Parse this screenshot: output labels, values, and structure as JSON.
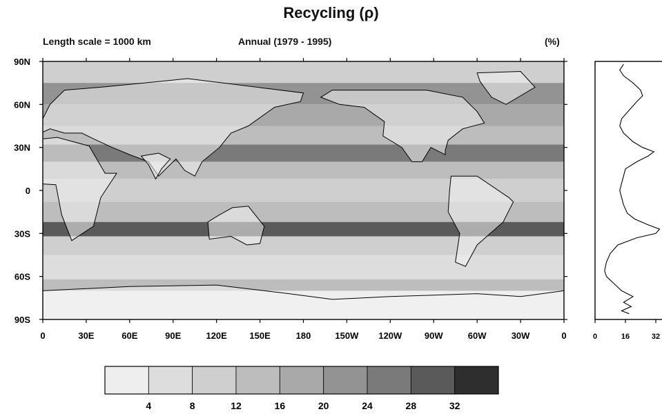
{
  "title": "Recycling (ρ)",
  "subtitle_left": "Length scale = 1000 km",
  "subtitle_center": "Annual (1979 - 1995)",
  "units_label": "(%)",
  "colors": {
    "shade_low": "#eeeeee",
    "shade_high": "#1e1e1e",
    "axis": "#000000",
    "coast": "#000000",
    "profile_line": "#000000"
  },
  "chart_data": [
    {
      "type": "heatmap",
      "description_panel": "map",
      "x_ticks": [
        "0",
        "30E",
        "60E",
        "90E",
        "120E",
        "150E",
        "180",
        "150W",
        "120W",
        "90W",
        "60W",
        "30W",
        "0"
      ],
      "x_tick_values": [
        0,
        30,
        60,
        90,
        120,
        150,
        180,
        210,
        240,
        270,
        300,
        330,
        360
      ],
      "y_ticks": [
        "90N",
        "60N",
        "30N",
        "0",
        "30S",
        "60S",
        "90S"
      ],
      "y_tick_values": [
        90,
        60,
        30,
        0,
        -30,
        -60,
        -90
      ],
      "xlim": [
        0,
        360
      ],
      "ylim": [
        -90,
        90
      ],
      "latitude_bands": [
        {
          "lat_range": [
            75,
            90
          ],
          "value": 9
        },
        {
          "lat_range": [
            60,
            75
          ],
          "value": 22
        },
        {
          "lat_range": [
            45,
            60
          ],
          "value": 18
        },
        {
          "lat_range": [
            32,
            45
          ],
          "value": 12
        },
        {
          "lat_range": [
            20,
            32
          ],
          "value": 26
        },
        {
          "lat_range": [
            8,
            20
          ],
          "value": 14
        },
        {
          "lat_range": [
            -8,
            8
          ],
          "value": 11
        },
        {
          "lat_range": [
            -22,
            -8
          ],
          "value": 15
        },
        {
          "lat_range": [
            -32,
            -22
          ],
          "value": 30
        },
        {
          "lat_range": [
            -45,
            -32
          ],
          "value": 8
        },
        {
          "lat_range": [
            -62,
            -45
          ],
          "value": 5
        },
        {
          "lat_range": [
            -70,
            -62
          ],
          "value": 14
        },
        {
          "lat_range": [
            -90,
            -70
          ],
          "value": 2
        }
      ],
      "colorbar": {
        "boundaries": [
          0,
          4,
          8,
          12,
          16,
          20,
          24,
          28,
          32,
          36
        ],
        "tick_labels": [
          "4",
          "8",
          "12",
          "16",
          "20",
          "24",
          "28",
          "32"
        ],
        "shades": [
          "#eeeeee",
          "#dddddd",
          "#cfcfcf",
          "#bdbdbd",
          "#a9a9a9",
          "#939393",
          "#7a7a7a",
          "#5a5a5a",
          "#2e2e2e"
        ]
      }
    },
    {
      "type": "line",
      "description_panel": "zonal_mean_profile",
      "x_ticks": [
        "0",
        "16",
        "32"
      ],
      "x_tick_values": [
        0,
        16,
        32
      ],
      "xlim": [
        0,
        40
      ],
      "ylim": [
        -90,
        90
      ],
      "points": [
        {
          "lat": 88,
          "value": 15
        },
        {
          "lat": 84,
          "value": 13
        },
        {
          "lat": 80,
          "value": 15
        },
        {
          "lat": 75,
          "value": 20
        },
        {
          "lat": 70,
          "value": 24
        },
        {
          "lat": 66,
          "value": 25
        },
        {
          "lat": 62,
          "value": 22
        },
        {
          "lat": 56,
          "value": 18
        },
        {
          "lat": 50,
          "value": 14
        },
        {
          "lat": 45,
          "value": 13
        },
        {
          "lat": 40,
          "value": 15
        },
        {
          "lat": 34,
          "value": 20
        },
        {
          "lat": 30,
          "value": 25
        },
        {
          "lat": 27,
          "value": 31
        },
        {
          "lat": 24,
          "value": 28
        },
        {
          "lat": 20,
          "value": 22
        },
        {
          "lat": 15,
          "value": 16
        },
        {
          "lat": 10,
          "value": 15
        },
        {
          "lat": 5,
          "value": 14
        },
        {
          "lat": 0,
          "value": 13
        },
        {
          "lat": -5,
          "value": 14
        },
        {
          "lat": -10,
          "value": 15
        },
        {
          "lat": -16,
          "value": 17
        },
        {
          "lat": -20,
          "value": 21
        },
        {
          "lat": -24,
          "value": 28
        },
        {
          "lat": -27,
          "value": 34
        },
        {
          "lat": -30,
          "value": 32
        },
        {
          "lat": -33,
          "value": 22
        },
        {
          "lat": -38,
          "value": 12
        },
        {
          "lat": -44,
          "value": 8
        },
        {
          "lat": -50,
          "value": 6
        },
        {
          "lat": -56,
          "value": 5
        },
        {
          "lat": -60,
          "value": 6
        },
        {
          "lat": -65,
          "value": 10
        },
        {
          "lat": -70,
          "value": 14
        },
        {
          "lat": -74,
          "value": 20
        },
        {
          "lat": -78,
          "value": 15
        },
        {
          "lat": -81,
          "value": 19
        },
        {
          "lat": -84,
          "value": 14
        },
        {
          "lat": -86,
          "value": 18
        }
      ]
    }
  ]
}
